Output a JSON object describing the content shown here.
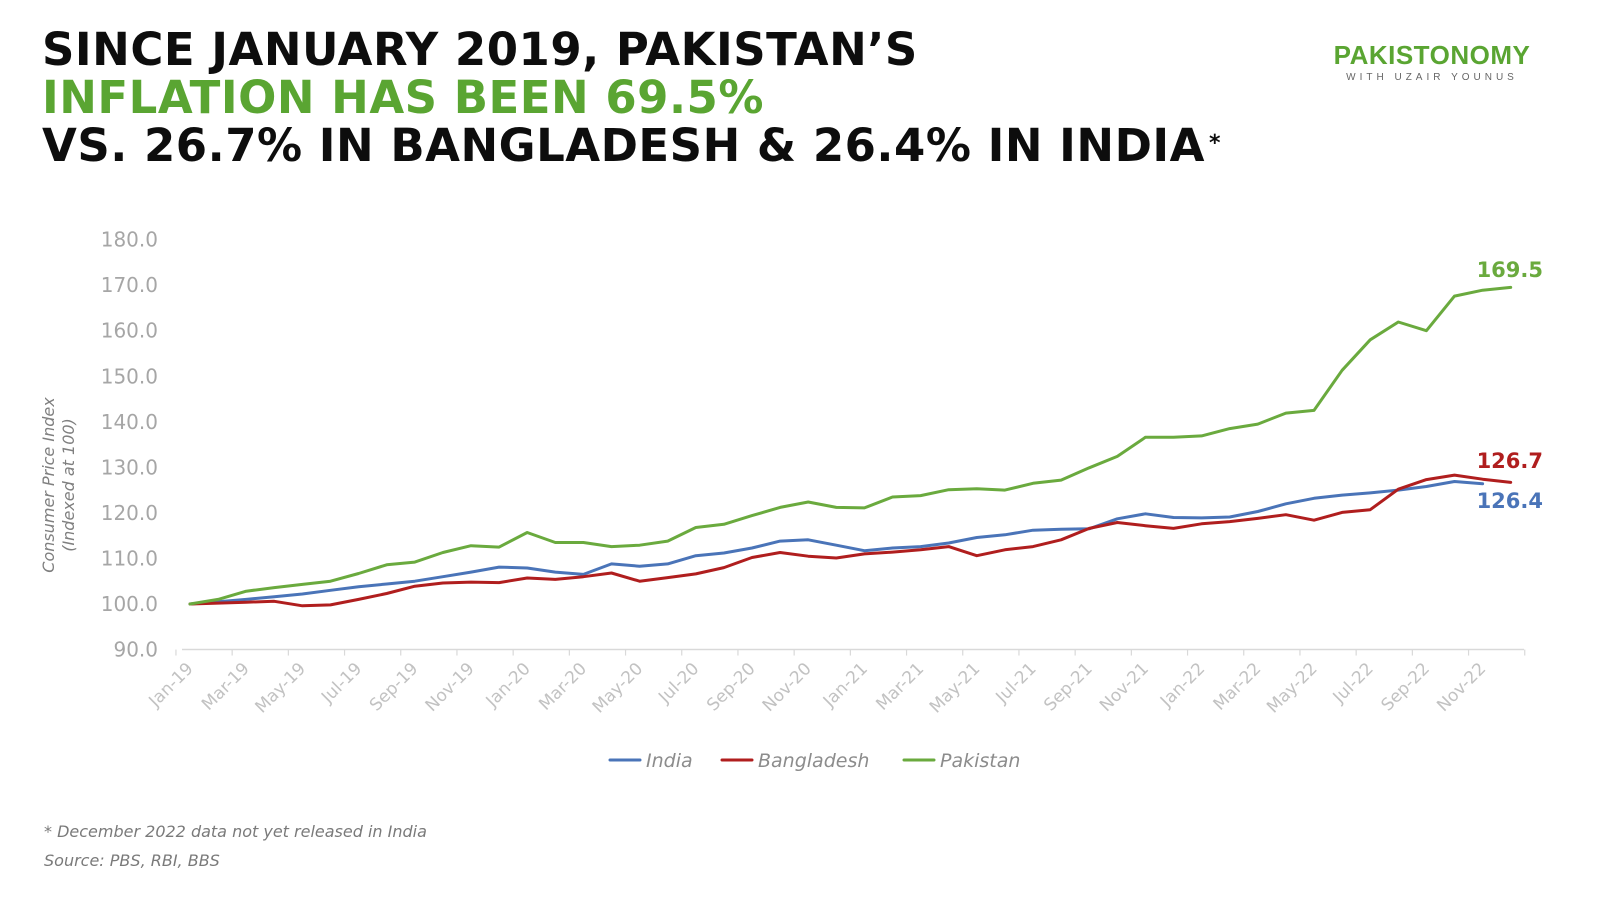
{
  "title": {
    "line1": "SINCE JANUARY 2019, PAKISTAN’S",
    "line2": "INFLATION HAS BEEN 69.5%",
    "line3": "VS. 26.7% IN BANGLADESH & 26.4% IN INDIA",
    "asterisk": "*"
  },
  "logo": {
    "name": "PAKISTONOMY",
    "subtitle": "WITH UZAIR YOUNUS"
  },
  "footnote": "* December 2022 data not yet released in India",
  "source": "Source: PBS, RBI, BBS",
  "chart_data": {
    "type": "line",
    "ylabel_line1": "Consumer Price Index",
    "ylabel_line2": "(Indexed at 100)",
    "ylim": [
      90,
      180
    ],
    "yticks": [
      "90.0",
      "100.0",
      "110.0",
      "120.0",
      "130.0",
      "140.0",
      "150.0",
      "160.0",
      "170.0",
      "180.0"
    ],
    "x": [
      "Jan-19",
      "Feb-19",
      "Mar-19",
      "Apr-19",
      "May-19",
      "Jun-19",
      "Jul-19",
      "Aug-19",
      "Sep-19",
      "Oct-19",
      "Nov-19",
      "Dec-19",
      "Jan-20",
      "Feb-20",
      "Mar-20",
      "Apr-20",
      "May-20",
      "Jun-20",
      "Jul-20",
      "Aug-20",
      "Sep-20",
      "Oct-20",
      "Nov-20",
      "Dec-20",
      "Jan-21",
      "Feb-21",
      "Mar-21",
      "Apr-21",
      "May-21",
      "Jun-21",
      "Jul-21",
      "Aug-21",
      "Sep-21",
      "Oct-21",
      "Nov-21",
      "Dec-21",
      "Jan-22",
      "Feb-22",
      "Mar-22",
      "Apr-22",
      "May-22",
      "Jun-22",
      "Jul-22",
      "Aug-22",
      "Sep-22",
      "Oct-22",
      "Nov-22",
      "Dec-22"
    ],
    "xtick_labels": [
      "Jan-19",
      "Mar-19",
      "May-19",
      "Jul-19",
      "Sep-19",
      "Nov-19",
      "Jan-20",
      "Mar-20",
      "May-20",
      "Jul-20",
      "Sep-20",
      "Nov-20",
      "Jan-21",
      "Mar-21",
      "May-21",
      "Jul-21",
      "Sep-21",
      "Nov-21",
      "Jan-22",
      "Mar-22",
      "May-22",
      "Jul-22",
      "Sep-22",
      "Nov-22"
    ],
    "series": [
      {
        "name": "India",
        "color": "#4a74b8",
        "values": [
          100.0,
          100.5,
          101.0,
          101.6,
          102.2,
          103.0,
          103.8,
          104.4,
          105.0,
          106.0,
          107.0,
          108.1,
          107.9,
          107.0,
          106.5,
          108.8,
          108.3,
          108.8,
          110.6,
          111.2,
          112.3,
          113.8,
          114.1,
          112.9,
          111.7,
          112.3,
          112.6,
          113.4,
          114.6,
          115.2,
          116.2,
          116.4,
          116.5,
          118.7,
          119.8,
          119.0,
          118.9,
          119.1,
          120.3,
          122.0,
          123.2,
          123.9,
          124.4,
          125.0,
          125.8,
          126.9,
          126.4,
          null
        ],
        "end_label": "126.4"
      },
      {
        "name": "Bangladesh",
        "color": "#b01e1e",
        "values": [
          100.0,
          100.2,
          100.4,
          100.6,
          99.6,
          99.8,
          101.0,
          102.3,
          103.9,
          104.6,
          104.8,
          104.7,
          105.7,
          105.4,
          106.0,
          106.8,
          105.0,
          105.8,
          106.6,
          108.0,
          110.2,
          111.3,
          110.5,
          110.1,
          111.0,
          111.4,
          111.9,
          112.6,
          110.6,
          111.9,
          112.6,
          114.1,
          116.6,
          117.9,
          117.2,
          116.6,
          117.6,
          118.1,
          118.8,
          119.6,
          118.4,
          120.1,
          120.7,
          125.2,
          127.3,
          128.3,
          127.4,
          126.7
        ],
        "end_label": "126.7"
      },
      {
        "name": "Pakistan",
        "color": "#6aaa3e",
        "values": [
          100.0,
          101.0,
          102.8,
          103.6,
          104.3,
          105.0,
          106.7,
          108.6,
          109.2,
          111.3,
          112.8,
          112.5,
          115.7,
          113.5,
          113.5,
          112.6,
          112.9,
          113.8,
          116.8,
          117.5,
          119.4,
          121.2,
          122.4,
          121.2,
          121.1,
          123.5,
          123.8,
          125.1,
          125.3,
          125.0,
          126.5,
          127.2,
          129.9,
          132.4,
          136.6,
          136.6,
          136.9,
          138.5,
          139.5,
          141.9,
          142.5,
          151.3,
          158.0,
          161.9,
          160.0,
          167.6,
          168.9,
          169.5
        ],
        "end_label": "169.5"
      }
    ],
    "legend_position": "bottom"
  }
}
